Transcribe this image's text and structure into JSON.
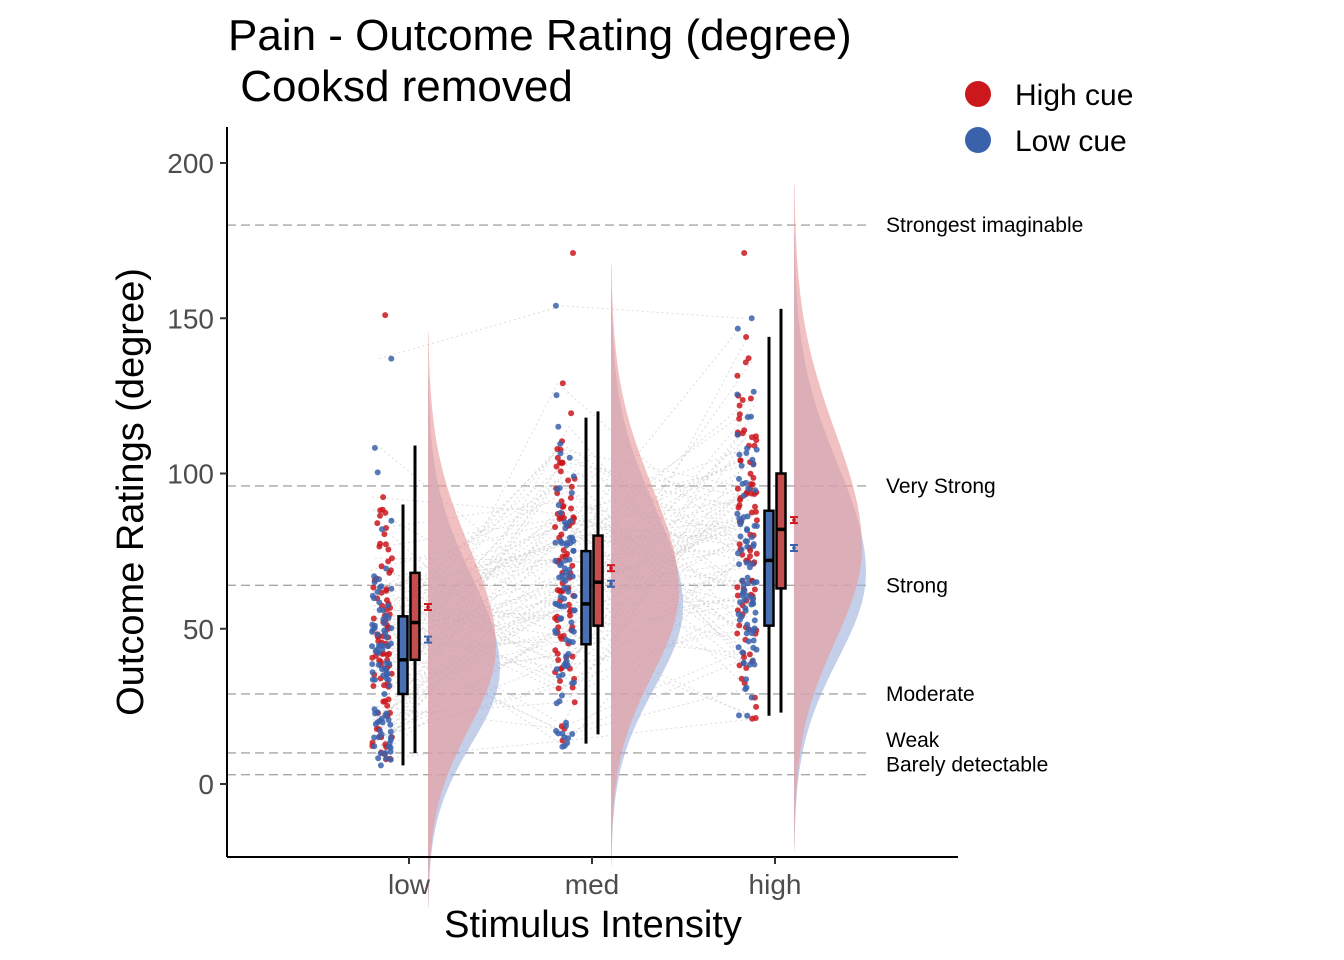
{
  "chart_data": {
    "type": "raincloud",
    "title_line1": "Pain - Outcome Rating (degree)",
    "title_line2": " Cooksd removed",
    "xlabel": "Stimulus Intensity",
    "ylabel": "Outcome Ratings (degree)",
    "categories": [
      "low",
      "med",
      "high"
    ],
    "ylim": [
      -23,
      212
    ],
    "yticks": [
      0,
      50,
      100,
      150,
      200
    ],
    "legend_position": "top-right",
    "series": [
      {
        "name": "High cue",
        "color": "#cb181d",
        "box": [
          {
            "min": 10,
            "q1": 40,
            "median": 52,
            "q3": 68,
            "max": 109
          },
          {
            "min": 16,
            "q1": 51,
            "median": 65,
            "q3": 80,
            "max": 120
          },
          {
            "min": 23,
            "q1": 63,
            "median": 82,
            "q3": 100,
            "max": 153
          }
        ],
        "mean": [
          57,
          69.5,
          85
        ],
        "point_range": [
          [
            8,
            151
          ],
          [
            14,
            171
          ],
          [
            21,
            171
          ]
        ],
        "density_peak": [
          44,
          62,
          76
        ],
        "density_sd": [
          26,
          27,
          30
        ]
      },
      {
        "name": "Low cue",
        "color": "#3a62ab",
        "box": [
          {
            "min": 6,
            "q1": 29,
            "median": 40,
            "q3": 54,
            "max": 90
          },
          {
            "min": 13,
            "q1": 45,
            "median": 58,
            "q3": 75,
            "max": 118
          },
          {
            "min": 22,
            "q1": 51,
            "median": 72,
            "q3": 88,
            "max": 144
          }
        ],
        "mean": [
          46.5,
          64.5,
          76
        ],
        "point_range": [
          [
            6,
            137
          ],
          [
            12,
            154
          ],
          [
            22,
            150
          ]
        ],
        "density_peak": [
          37,
          57,
          68
        ],
        "density_sd": [
          24,
          26,
          28
        ]
      }
    ],
    "reference_lines": [
      {
        "label": "Strongest imaginable",
        "value": 180
      },
      {
        "label": "Very Strong",
        "value": 96
      },
      {
        "label": "Strong",
        "value": 64
      },
      {
        "label": "Moderate",
        "value": 29
      },
      {
        "label": "Weak",
        "value": 10
      },
      {
        "label": "Barely detectable",
        "value": 3
      }
    ]
  }
}
